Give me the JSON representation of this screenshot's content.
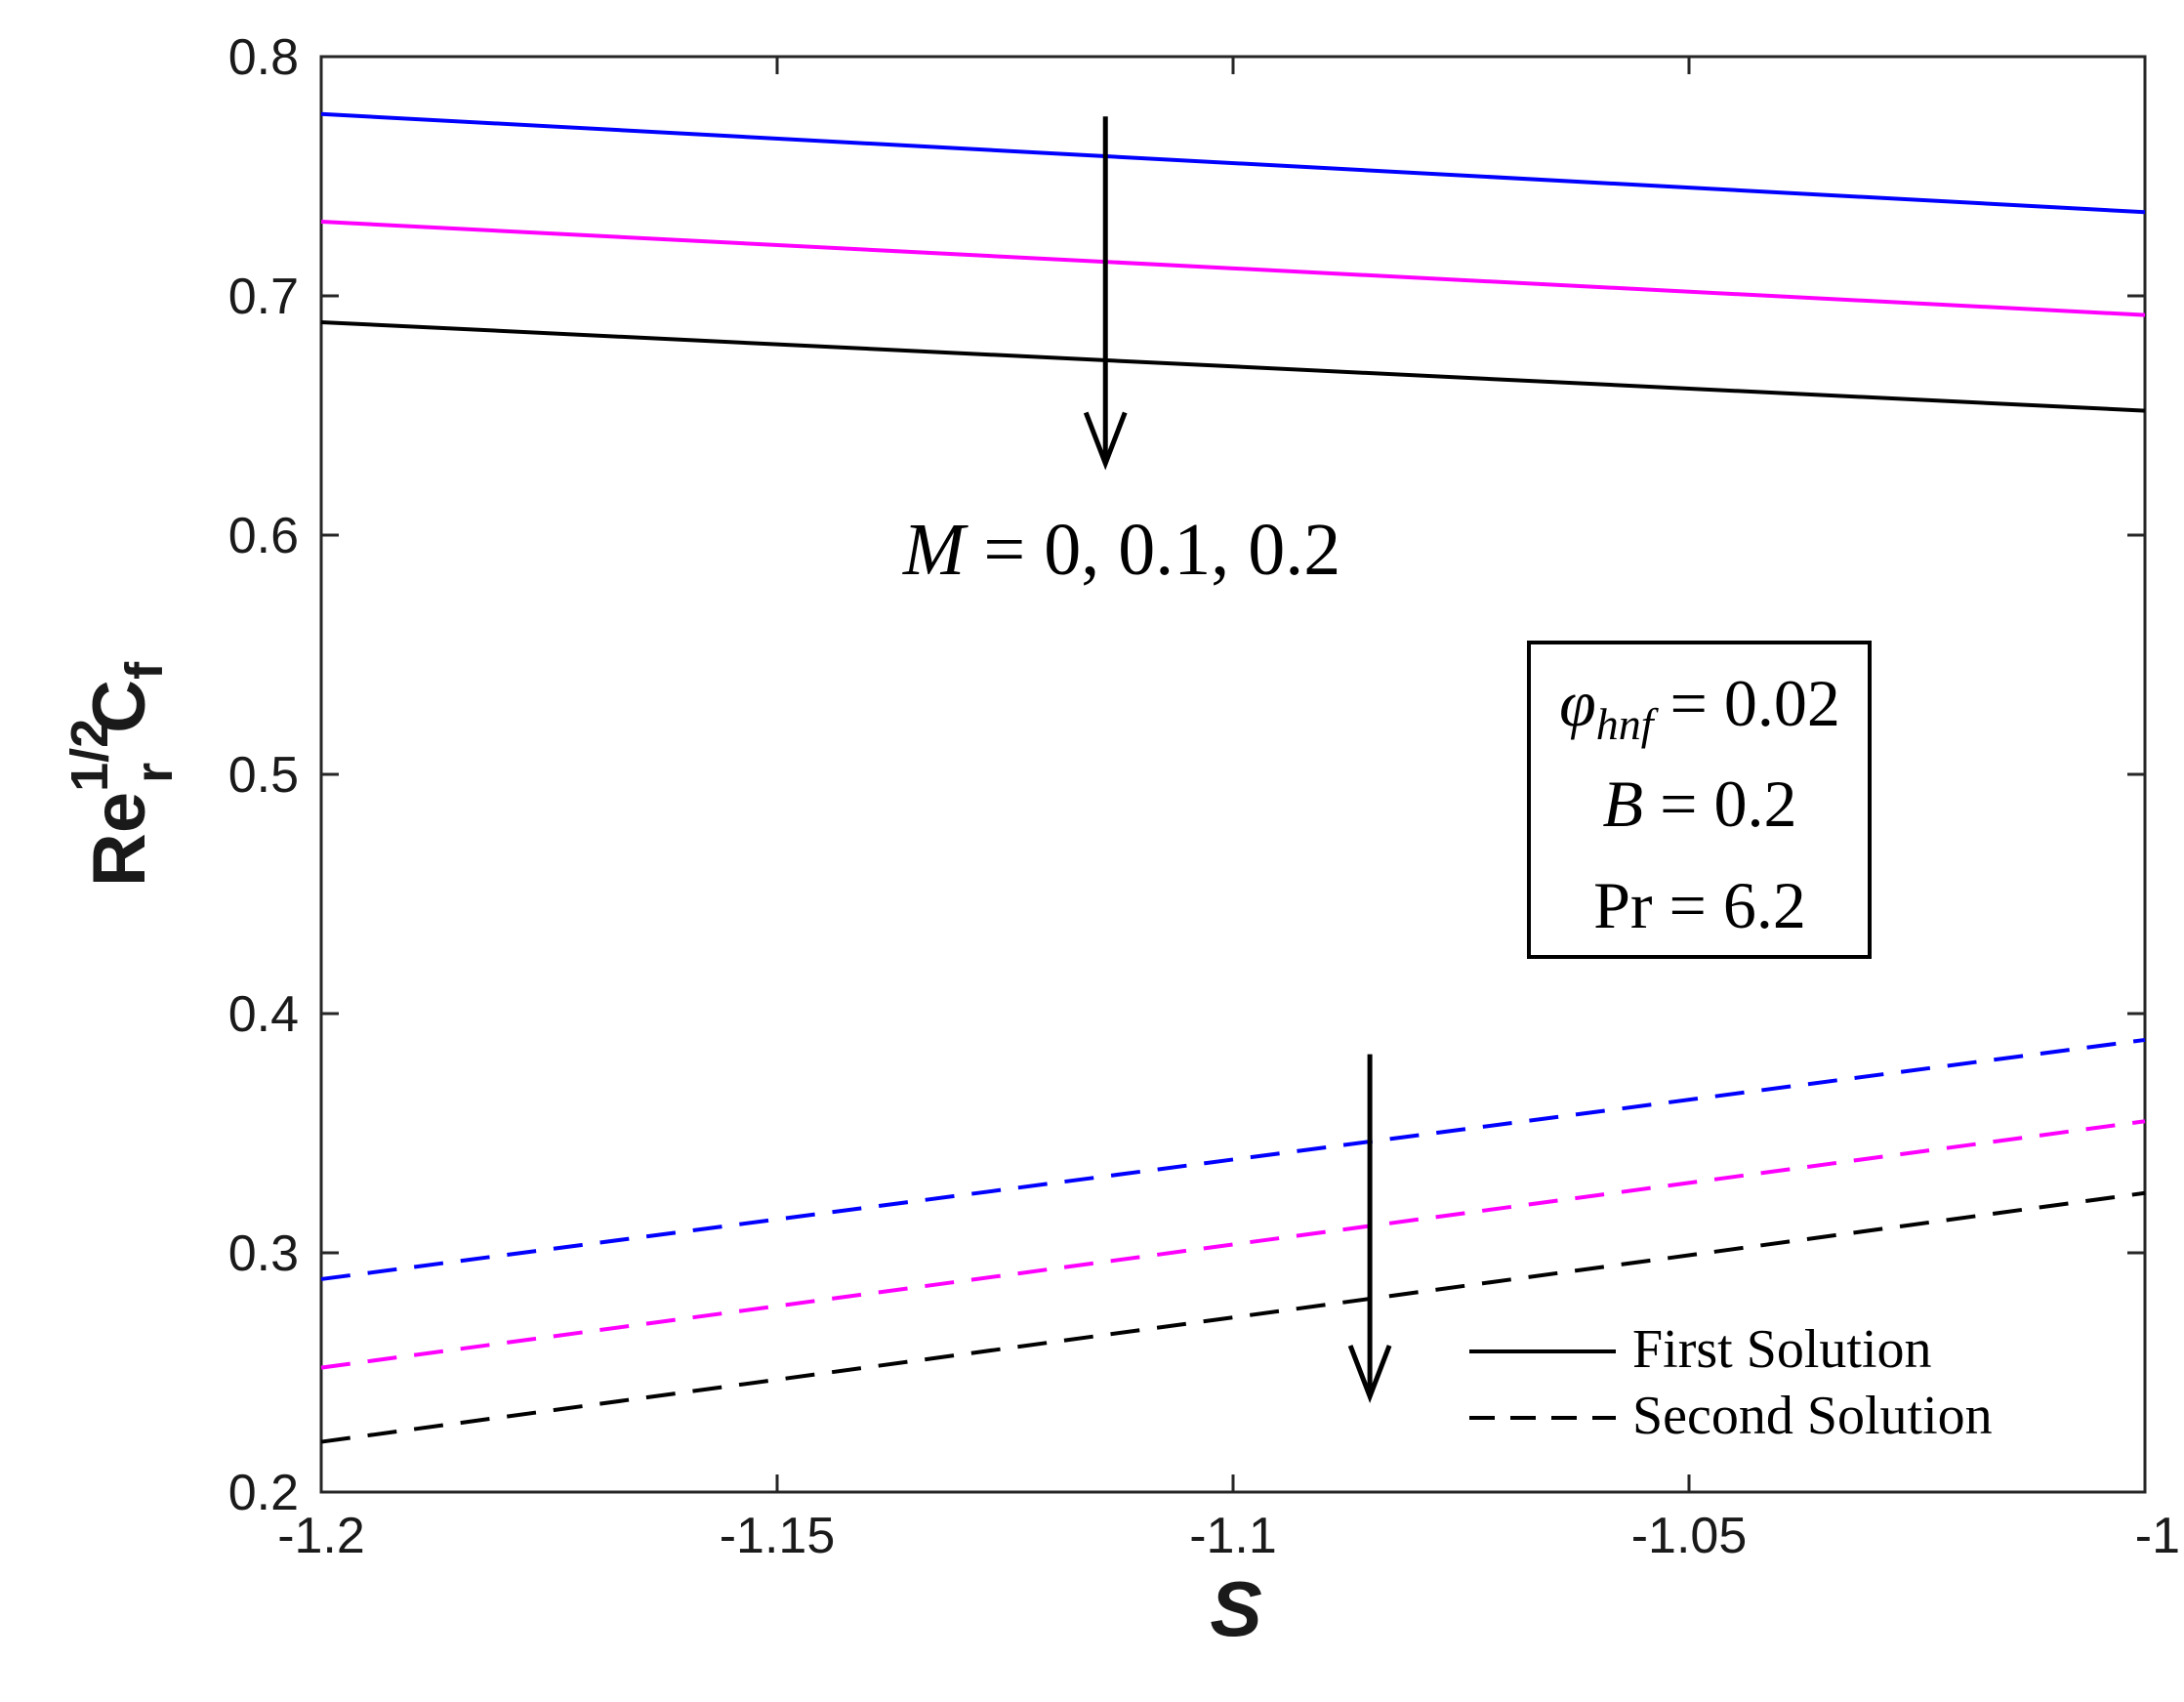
{
  "chart_data": {
    "type": "line",
    "xlabel": "S",
    "ylabel": {
      "base": "Re",
      "sub": "r",
      "sup": "1/2",
      "tail": "C",
      "tail_sub": "f"
    },
    "xlim": [
      -1.2,
      -1.0
    ],
    "ylim": [
      0.2,
      0.8
    ],
    "x_ticks": [
      -1.2,
      -1.15,
      -1.1,
      -1.05,
      -1.0
    ],
    "x_tick_labels": [
      "-1.2",
      "-1.15",
      "-1.1",
      "-1.05",
      "-1"
    ],
    "y_ticks": [
      0.2,
      0.3,
      0.4,
      0.5,
      0.6,
      0.7,
      0.8
    ],
    "y_tick_labels": [
      "0.2",
      "0.3",
      "0.4",
      "0.5",
      "0.6",
      "0.7",
      "0.8"
    ],
    "grid": false,
    "legend_position": "bottom-right",
    "legend": [
      {
        "label": "First Solution",
        "style": "solid",
        "color": "#000000"
      },
      {
        "label": "Second Solution",
        "style": "dashed",
        "color": "#000000"
      }
    ],
    "series": [
      {
        "solution": "first",
        "style": "solid",
        "color": "#0000ff",
        "x": [
          -1.2,
          -1.0
        ],
        "y": [
          0.776,
          0.735
        ]
      },
      {
        "solution": "first",
        "style": "solid",
        "color": "#ff00ff",
        "x": [
          -1.2,
          -1.0
        ],
        "y": [
          0.731,
          0.692
        ]
      },
      {
        "solution": "first",
        "style": "solid",
        "color": "#000000",
        "x": [
          -1.2,
          -1.0
        ],
        "y": [
          0.689,
          0.652
        ]
      },
      {
        "solution": "second",
        "style": "dashed",
        "color": "#0000ff",
        "x": [
          -1.2,
          -1.0
        ],
        "y": [
          0.289,
          0.389
        ]
      },
      {
        "solution": "second",
        "style": "dashed",
        "color": "#ff00ff",
        "x": [
          -1.2,
          -1.0
        ],
        "y": [
          0.252,
          0.355
        ]
      },
      {
        "solution": "second",
        "style": "dashed",
        "color": "#000000",
        "x": [
          -1.2,
          -1.0
        ],
        "y": [
          0.221,
          0.325
        ]
      }
    ],
    "annotations": {
      "m_label": {
        "var": "M",
        "eq": " = ",
        "values": "0, 0.1, 0.2"
      },
      "arrows": [
        {
          "x": -1.114,
          "y_from": 0.775,
          "y_to": 0.63
        },
        {
          "x": -1.085,
          "y_from": 0.383,
          "y_to": 0.24
        }
      ],
      "param_box": [
        {
          "var": "φ",
          "sub": "hnf",
          "eq": " = ",
          "val": "0.02"
        },
        {
          "var": "B",
          "sub": "",
          "eq": " = ",
          "val": "0.2"
        },
        {
          "var": "Pr",
          "sub": "",
          "eq": " = ",
          "val": "6.2"
        }
      ]
    }
  }
}
